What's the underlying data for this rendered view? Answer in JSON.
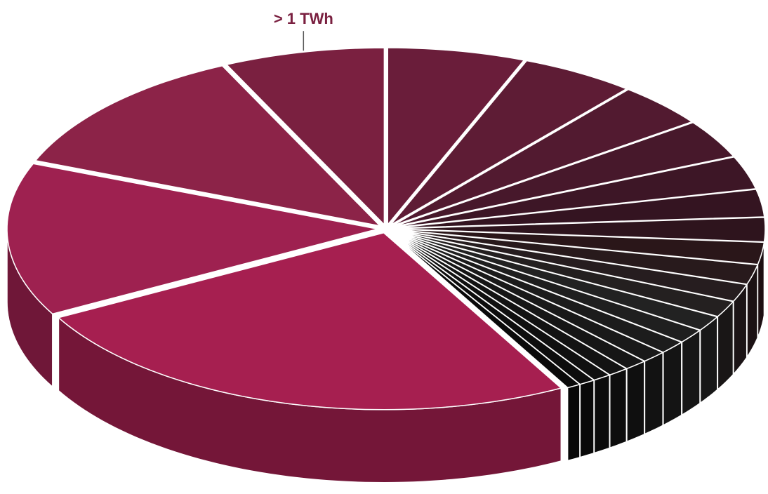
{
  "chart_data": {
    "type": "pie3d",
    "categories": [
      null,
      null,
      null,
      null,
      null,
      null,
      null,
      null,
      null,
      null,
      null,
      null,
      null,
      null,
      null,
      null,
      null,
      null,
      null,
      null,
      null,
      null,
      null,
      "> 1 TWh"
    ],
    "values": [
      6,
      5,
      4,
      3.5,
      3,
      2.5,
      2.2,
      2,
      1.8,
      1.6,
      1.5,
      1.4,
      1.3,
      1.2,
      1.1,
      1,
      0.9,
      0.8,
      0.7,
      0.6,
      25,
      14,
      12,
      7
    ],
    "colors": [
      "#6a1d3a",
      "#5e1c35",
      "#521a30",
      "#47182b",
      "#3d1626",
      "#341421",
      "#2e141d",
      "#2a1619",
      "#281a1c",
      "#261d1f",
      "#242020",
      "#222222",
      "#1f1f1f",
      "#1c1c1c",
      "#191919",
      "#161616",
      "#131313",
      "#101010",
      "#0d0d0d",
      "#0a0a0a",
      "#a61f50",
      "#9e2150",
      "#8c2348",
      "#7a2040"
    ],
    "label_color": "#7a2040"
  }
}
